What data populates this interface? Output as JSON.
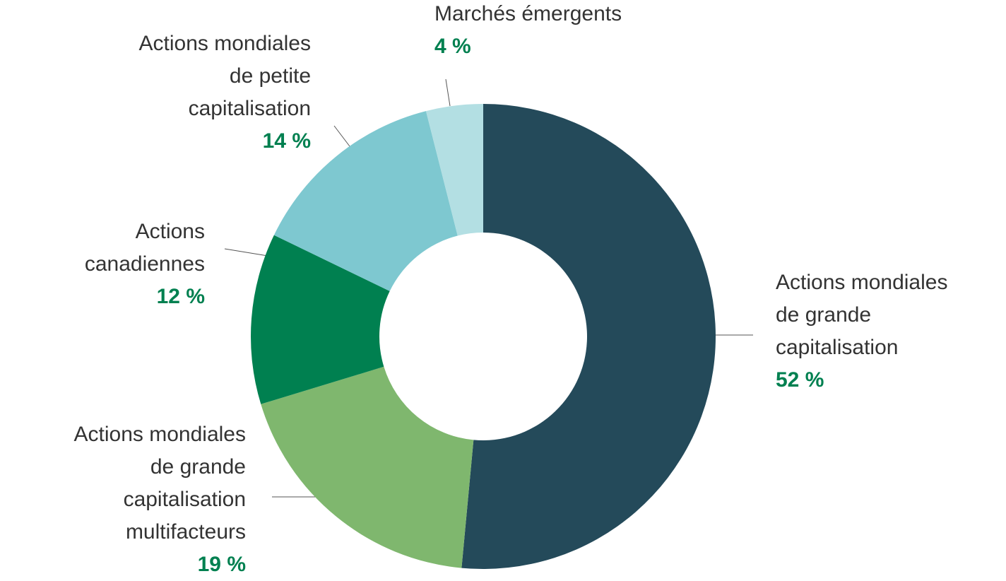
{
  "chart_data": {
    "type": "donut",
    "categories": [
      "Actions mondiales\nde grande\ncapitalisation",
      "Actions mondiales\nde grande\ncapitalisation\nmultifacteurs",
      "Actions\ncanadiennes",
      "Actions mondiales\nde petite\ncapitalisation",
      "Marchés émergents"
    ],
    "values": [
      52,
      19,
      12,
      14,
      4
    ],
    "value_labels": [
      "52 %",
      "19 %",
      "12 %",
      "14 %",
      "4 %"
    ],
    "colors": [
      "#244a5a",
      "#7fb76e",
      "#008050",
      "#7ec8d0",
      "#b3dfe3"
    ]
  }
}
